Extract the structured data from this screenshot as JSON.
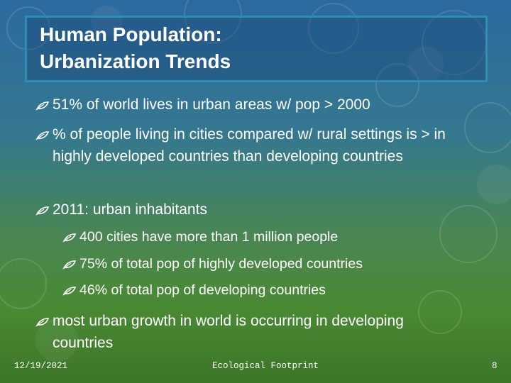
{
  "title": {
    "lines": [
      "Human Population:",
      "Urbanization Trends"
    ]
  },
  "bullets": [
    {
      "text": "51% of world lives in urban areas w/ pop > 2000"
    },
    {
      "text": "% of people living in cities compared w/ rural settings is > in highly developed countries than developing countries"
    },
    {
      "text": "2011: urban inhabitants",
      "sub": [
        "400 cities have more than 1 million people",
        "75% of total pop of highly developed countries",
        "46% of total pop of developing countries"
      ]
    },
    {
      "text": "most urban growth in world is occurring in developing countries"
    }
  ],
  "footer": {
    "date": "12/19/2021",
    "text": "Ecological Footprint",
    "page": 8
  }
}
